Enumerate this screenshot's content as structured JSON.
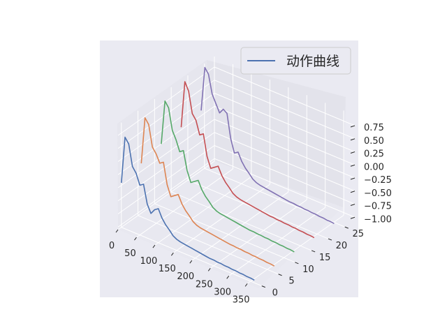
{
  "chart_data": {
    "type": "line",
    "projection": "3d",
    "title": "",
    "grid": true,
    "legend": {
      "placement": "top-right",
      "entries": [
        {
          "label": "动作曲线",
          "color": "#4c72b0"
        }
      ]
    },
    "x_axis": {
      "label": "",
      "ticks": [
        "0",
        "50",
        "100",
        "150",
        "200",
        "250",
        "300",
        "350"
      ],
      "range": [
        0,
        380
      ]
    },
    "y_axis": {
      "label": "",
      "ticks": [
        "0",
        "5",
        "10",
        "15",
        "20",
        "25"
      ],
      "range": [
        -1,
        28
      ]
    },
    "z_axis": {
      "label": "",
      "ticks": [
        "0.75",
        "0.50",
        "0.25",
        "0.00",
        "−0.25",
        "−0.50",
        "−0.75",
        "−1.00"
      ],
      "range": [
        -1.05,
        0.95
      ]
    },
    "x": [
      0,
      10,
      20,
      30,
      40,
      50,
      60,
      70,
      80,
      90,
      100,
      110,
      120,
      130,
      140,
      150,
      160,
      170,
      180,
      190,
      200,
      210,
      220,
      230,
      240,
      250,
      260,
      270,
      280,
      290,
      300,
      310,
      320,
      330,
      340,
      350,
      360
    ],
    "series": [
      {
        "y": 0,
        "color": "#4c72b0",
        "values": [
          -0.2,
          0.7,
          0.6,
          0.2,
          0.1,
          -0.1,
          -0.05,
          -0.4,
          -0.55,
          -0.45,
          -0.4,
          -0.55,
          -0.65,
          -0.72,
          -0.8,
          -0.84,
          -0.86,
          -0.87,
          -0.88,
          -0.89,
          -0.9,
          -0.91,
          -0.92,
          -0.93,
          -0.94,
          -0.94,
          -0.95,
          -0.95,
          -0.96,
          -0.96,
          -0.97,
          -0.97,
          -0.98,
          -0.98,
          -0.99,
          -0.99,
          -1.0
        ]
      },
      {
        "y": 6,
        "color": "#dd8452",
        "values": [
          -0.1,
          0.8,
          0.7,
          0.3,
          0.2,
          0.05,
          0.1,
          -0.3,
          -0.5,
          -0.45,
          -0.4,
          -0.55,
          -0.65,
          -0.72,
          -0.8,
          -0.84,
          -0.86,
          -0.87,
          -0.88,
          -0.89,
          -0.9,
          -0.91,
          -0.92,
          -0.93,
          -0.94,
          -0.94,
          -0.95,
          -0.95,
          -0.96,
          -0.96,
          -0.97,
          -0.97,
          -0.98,
          -0.98,
          -0.99,
          -0.99,
          -1.0
        ]
      },
      {
        "y": 12,
        "color": "#55a868",
        "values": [
          0.0,
          0.85,
          0.75,
          0.35,
          0.2,
          0.0,
          0.05,
          -0.3,
          -0.5,
          -0.45,
          -0.4,
          -0.55,
          -0.65,
          -0.72,
          -0.8,
          -0.84,
          -0.86,
          -0.87,
          -0.88,
          -0.89,
          -0.9,
          -0.91,
          -0.92,
          -0.93,
          -0.94,
          -0.94,
          -0.95,
          -0.95,
          -0.96,
          -0.96,
          -0.97,
          -0.97,
          -0.98,
          -0.98,
          -0.99,
          -0.99,
          -1.0
        ]
      },
      {
        "y": 18,
        "color": "#c44e52",
        "values": [
          0.05,
          0.95,
          0.8,
          0.4,
          0.3,
          0.05,
          0.1,
          -0.3,
          -0.5,
          -0.45,
          -0.4,
          -0.55,
          -0.65,
          -0.72,
          -0.8,
          -0.84,
          -0.86,
          -0.87,
          -0.88,
          -0.89,
          -0.9,
          -0.91,
          -0.92,
          -0.93,
          -0.94,
          -0.94,
          -0.95,
          -0.95,
          -0.96,
          -0.96,
          -0.97,
          -0.97,
          -0.98,
          -0.98,
          -0.99,
          -0.99,
          -1.0
        ]
      },
      {
        "y": 24,
        "color": "#8172b3",
        "values": [
          0.1,
          0.95,
          0.85,
          0.5,
          0.35,
          0.2,
          0.3,
          0.25,
          -0.2,
          -0.45,
          -0.4,
          -0.55,
          -0.65,
          -0.72,
          -0.8,
          -0.84,
          -0.86,
          -0.87,
          -0.88,
          -0.89,
          -0.9,
          -0.91,
          -0.92,
          -0.93,
          -0.94,
          -0.94,
          -0.95,
          -0.95,
          -0.96,
          -0.96,
          -0.97,
          -0.97,
          -0.98,
          -0.98,
          -0.99,
          -0.99,
          -1.0
        ]
      }
    ]
  }
}
